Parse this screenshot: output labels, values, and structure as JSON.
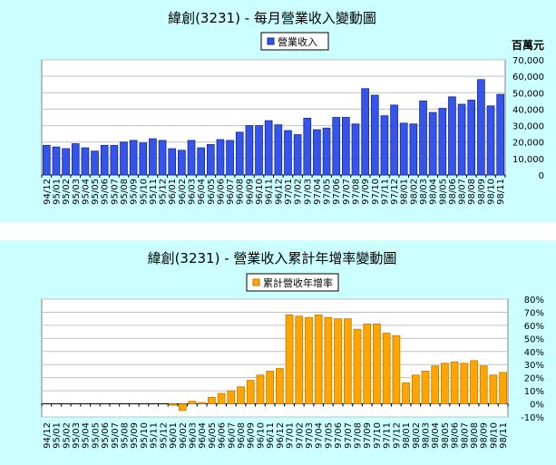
{
  "chart_data": [
    {
      "type": "bar",
      "title": "緯創(3231) - 每月營業收入變動圖",
      "ylabel": "百萬元",
      "legend_position": "top",
      "grid": true,
      "ylim": [
        0,
        70000
      ],
      "yticks": [
        0,
        10000,
        20000,
        30000,
        40000,
        50000,
        60000,
        70000
      ],
      "ytick_labels": [
        "0",
        "10,000",
        "20,000",
        "30,000",
        "40,000",
        "50,000",
        "60,000",
        "70,000"
      ],
      "categories": [
        "94/12",
        "95/01",
        "95/02",
        "95/03",
        "95/04",
        "95/05",
        "95/06",
        "95/07",
        "95/08",
        "95/09",
        "95/10",
        "95/11",
        "95/12",
        "96/01",
        "96/02",
        "96/03",
        "96/04",
        "96/05",
        "96/06",
        "96/07",
        "96/08",
        "96/09",
        "96/10",
        "96/11",
        "96/12",
        "97/01",
        "97/02",
        "97/03",
        "97/04",
        "97/05",
        "97/06",
        "97/07",
        "97/08",
        "97/09",
        "97/10",
        "97/11",
        "97/12",
        "98/01",
        "98/02",
        "98/03",
        "98/04",
        "98/05",
        "98/06",
        "98/07",
        "98/08",
        "98/09",
        "98/10",
        "98/11"
      ],
      "series": [
        {
          "name": "營業收入",
          "color": "#3355ee",
          "edge": "#1a2a88",
          "values": [
            18000,
            17000,
            16000,
            19000,
            16500,
            14500,
            18000,
            18000,
            20000,
            21000,
            19500,
            22000,
            21000,
            16000,
            15000,
            21000,
            16500,
            18500,
            21500,
            21000,
            26000,
            30000,
            30000,
            33000,
            30500,
            27000,
            24500,
            34500,
            27500,
            28500,
            35000,
            35000,
            31000,
            52500,
            48500,
            36000,
            42500,
            31500,
            31000,
            45000,
            38000,
            40500,
            47500,
            43000,
            45500,
            58000,
            42000,
            49000
          ]
        }
      ]
    },
    {
      "type": "bar",
      "title": "緯創(3231) -  營業收入累計年增率變動圖",
      "legend_position": "top",
      "grid": true,
      "ylim": [
        -10,
        80
      ],
      "yticks": [
        -10,
        0,
        10,
        20,
        30,
        40,
        50,
        60,
        70,
        80
      ],
      "ytick_labels": [
        "-10%",
        "0%",
        "10%",
        "20%",
        "30%",
        "40%",
        "50%",
        "60%",
        "70%",
        "80%"
      ],
      "categories": [
        "94/12",
        "95/01",
        "95/02",
        "95/03",
        "95/04",
        "95/05",
        "95/06",
        "95/07",
        "95/08",
        "95/09",
        "95/10",
        "95/11",
        "95/12",
        "96/01",
        "96/02",
        "96/03",
        "96/04",
        "96/05",
        "96/06",
        "96/07",
        "96/08",
        "96/09",
        "96/10",
        "96/11",
        "96/12",
        "97/01",
        "97/02",
        "97/03",
        "97/04",
        "97/05",
        "97/06",
        "97/07",
        "97/08",
        "97/09",
        "97/10",
        "97/11",
        "97/12",
        "98/01",
        "98/02",
        "98/03",
        "98/04",
        "98/05",
        "98/06",
        "98/07",
        "98/08",
        "98/09",
        "98/10",
        "98/11"
      ],
      "series": [
        {
          "name": "累計營收年增率",
          "color": "#ffa500",
          "edge": "#c07a00",
          "values": [
            0,
            0,
            0,
            0,
            0,
            0,
            0,
            0,
            0,
            0,
            0,
            0,
            0,
            -1,
            -5,
            2,
            1,
            5,
            8,
            10,
            13,
            18,
            22,
            25,
            27,
            68,
            67,
            66,
            68,
            66,
            65,
            65,
            57,
            61,
            61,
            54,
            52,
            16,
            22,
            25,
            29,
            31,
            32,
            31,
            33,
            29,
            22,
            24
          ]
        }
      ]
    }
  ]
}
